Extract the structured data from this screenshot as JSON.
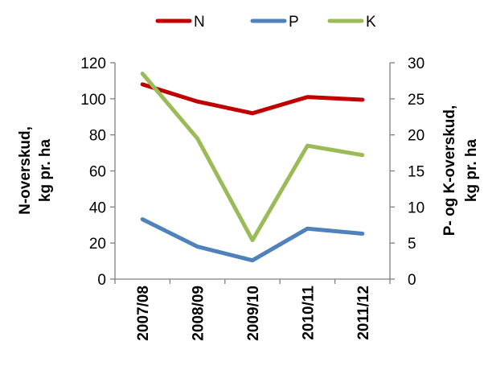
{
  "chart_data": {
    "type": "line",
    "title": "",
    "categories": [
      "2007/08",
      "2008/09",
      "2009/10",
      "2010/11",
      "2011/12"
    ],
    "series": [
      {
        "name": "N",
        "axis": "left",
        "color": "#c00000",
        "values": [
          108,
          98.5,
          92,
          101,
          99.5
        ]
      },
      {
        "name": "P",
        "axis": "right",
        "color": "#4f81bd",
        "values": [
          8.3,
          4.5,
          2.6,
          7.0,
          6.3
        ]
      },
      {
        "name": "K",
        "axis": "right",
        "color": "#9bbb59",
        "values": [
          28.5,
          19.5,
          5.4,
          18.5,
          17.2
        ]
      }
    ],
    "y_left": {
      "label_line1": "N-overskud,",
      "label_line2": "kg pr. ha",
      "min": 0,
      "max": 120,
      "ticks": [
        0,
        20,
        40,
        60,
        80,
        100,
        120
      ]
    },
    "y_right": {
      "label_line1": "P- og K-overskud,",
      "label_line2": "kg pr. ha",
      "min": 0,
      "max": 30,
      "ticks": [
        0,
        5,
        10,
        15,
        20,
        25,
        30
      ]
    },
    "grid": false,
    "legend_position": "top"
  }
}
